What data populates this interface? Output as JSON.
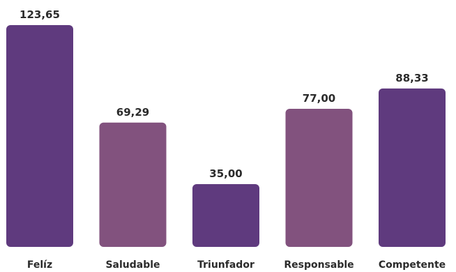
{
  "chart_data": {
    "type": "bar",
    "title": "",
    "xlabel": "",
    "ylabel": "",
    "categories": [
      "Felíz",
      "Saludable",
      "Triunfador",
      "Responsable",
      "Competente"
    ],
    "values": [
      123.65,
      69.29,
      35.0,
      77.0,
      88.33
    ],
    "value_labels": [
      "123,65",
      "69,29",
      "35,00",
      "77,00",
      "88,33"
    ],
    "bar_colors": [
      "#5f3a7e",
      "#82527e",
      "#5f3a7e",
      "#82527e",
      "#5f3a7e"
    ],
    "ylim": [
      0,
      123.65
    ],
    "grid": false,
    "legend": "none"
  }
}
